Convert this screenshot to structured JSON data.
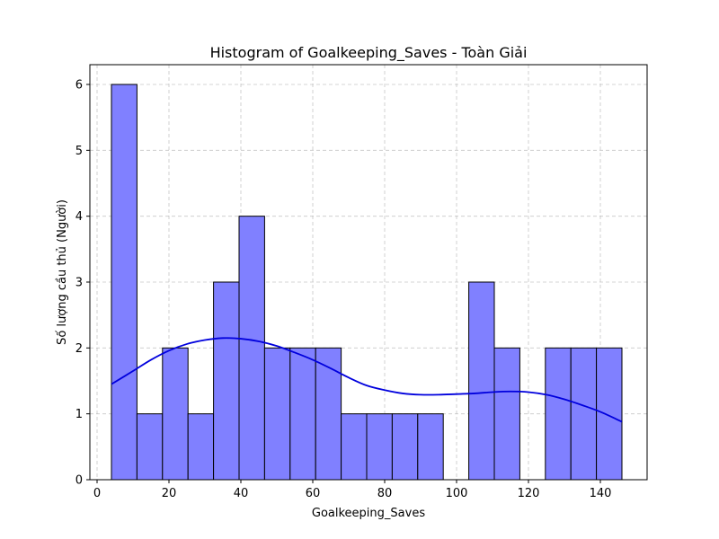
{
  "chart_data": {
    "type": "bar",
    "title": "Histogram of Goalkeeping_Saves - Toàn Giải",
    "xlabel": "Goalkeeping_Saves",
    "ylabel": "Số lượng cầu thủ (Người)",
    "xlim": [
      -2,
      153
    ],
    "ylim": [
      0,
      6.3
    ],
    "xticks": [
      0,
      20,
      40,
      60,
      80,
      100,
      120,
      140
    ],
    "yticks": [
      0,
      1,
      2,
      3,
      4,
      5,
      6
    ],
    "grid": true,
    "bar_color": "#8080ff",
    "bar_edge_color": "#000000",
    "kde_color": "#0000dd",
    "bins": [
      {
        "x0": 4.0,
        "x1": 11.1,
        "count": 6
      },
      {
        "x0": 11.1,
        "x1": 18.2,
        "count": 1
      },
      {
        "x0": 18.2,
        "x1": 25.3,
        "count": 2
      },
      {
        "x0": 25.3,
        "x1": 32.4,
        "count": 1
      },
      {
        "x0": 32.4,
        "x1": 39.5,
        "count": 3
      },
      {
        "x0": 39.5,
        "x1": 46.6,
        "count": 4
      },
      {
        "x0": 46.6,
        "x1": 53.7,
        "count": 2
      },
      {
        "x0": 53.7,
        "x1": 60.8,
        "count": 2
      },
      {
        "x0": 60.8,
        "x1": 67.9,
        "count": 2
      },
      {
        "x0": 67.9,
        "x1": 75.0,
        "count": 1
      },
      {
        "x0": 75.0,
        "x1": 82.1,
        "count": 1
      },
      {
        "x0": 82.1,
        "x1": 89.2,
        "count": 1
      },
      {
        "x0": 89.2,
        "x1": 96.3,
        "count": 1
      },
      {
        "x0": 96.3,
        "x1": 103.4,
        "count": 0
      },
      {
        "x0": 103.4,
        "x1": 110.5,
        "count": 3
      },
      {
        "x0": 110.5,
        "x1": 117.6,
        "count": 2
      },
      {
        "x0": 117.6,
        "x1": 124.7,
        "count": 0
      },
      {
        "x0": 124.7,
        "x1": 131.8,
        "count": 2
      },
      {
        "x0": 131.8,
        "x1": 138.9,
        "count": 2
      },
      {
        "x0": 138.9,
        "x1": 146.0,
        "count": 2
      }
    ],
    "kde": {
      "x": [
        4,
        10,
        15,
        20,
        25,
        30,
        35,
        40,
        45,
        50,
        55,
        60,
        65,
        70,
        75,
        80,
        85,
        90,
        95,
        100,
        105,
        110,
        115,
        120,
        125,
        130,
        135,
        140,
        146
      ],
      "y": [
        1.45,
        1.65,
        1.82,
        1.96,
        2.06,
        2.12,
        2.15,
        2.14,
        2.1,
        2.03,
        1.93,
        1.82,
        1.69,
        1.55,
        1.43,
        1.36,
        1.31,
        1.29,
        1.29,
        1.3,
        1.31,
        1.33,
        1.34,
        1.33,
        1.29,
        1.22,
        1.13,
        1.03,
        0.88
      ]
    }
  }
}
